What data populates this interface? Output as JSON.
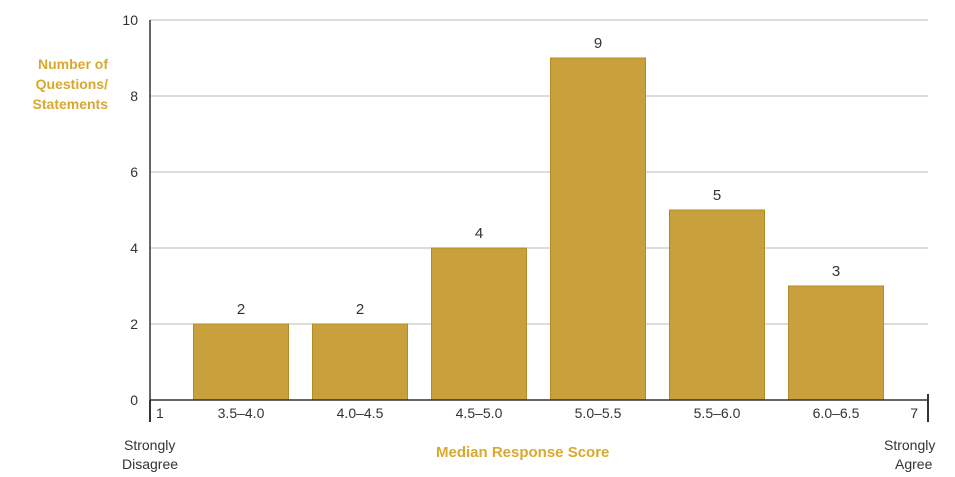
{
  "chart_data": {
    "type": "bar",
    "categories": [
      "3.5–4.0",
      "4.0–4.5",
      "4.5–5.0",
      "5.0–5.5",
      "5.5–6.0",
      "6.0–6.5"
    ],
    "values": [
      2,
      2,
      4,
      9,
      5,
      3
    ],
    "data_labels": [
      "2",
      "2",
      "4",
      "9",
      "5",
      "3"
    ],
    "ylabel_lines": [
      "Number of",
      "Questions/",
      "Statements"
    ],
    "xlabel": "Median Response Score",
    "ylim": [
      0,
      10
    ],
    "yticks": [
      "0",
      "2",
      "4",
      "6",
      "8",
      "10"
    ],
    "x_end_ticks": [
      "1",
      "7"
    ],
    "x_end_labels": {
      "left": [
        "Strongly",
        "Disagree"
      ],
      "right": [
        "Strongly",
        "Agree"
      ]
    },
    "grid": true,
    "colors": {
      "bar": "#c9a13c",
      "bar_edge": "#b38a28",
      "accent_text": "#d9a82e",
      "grid": "#b9b9b9",
      "axis": "#333333"
    }
  }
}
